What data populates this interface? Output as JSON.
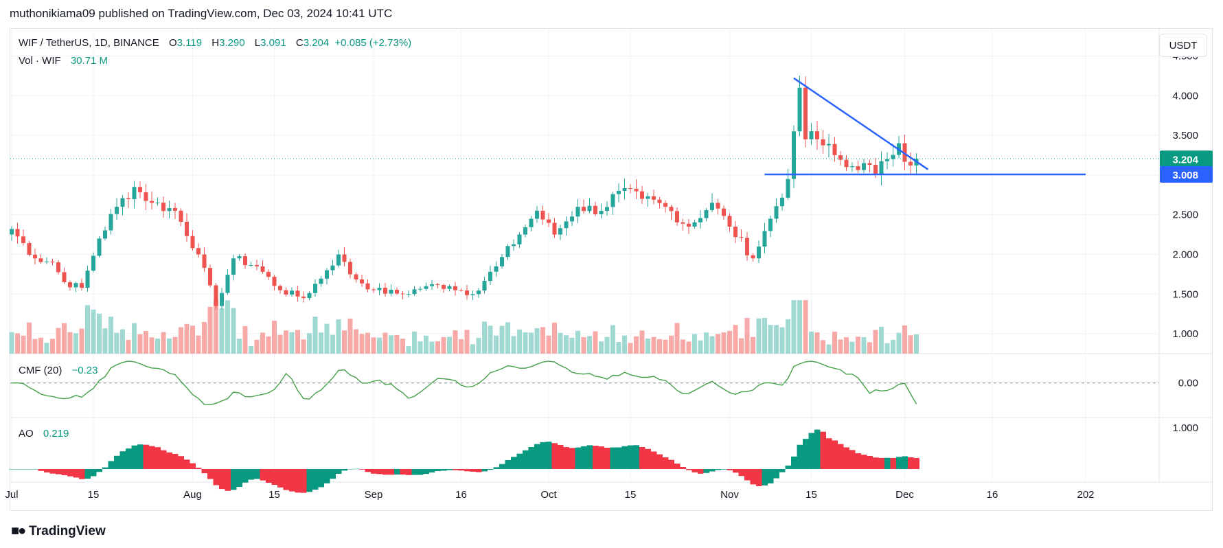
{
  "header": {
    "text": "muthonikiama09 published on TradingView.com, Dec 03, 2024 10:41 UTC"
  },
  "footer": {
    "brand": "TradingView",
    "logo_icon": "tradingview-logo-icon"
  },
  "currency_button": "USDT",
  "legend": {
    "symbol": "WIF / TetherUS, 1D, BINANCE",
    "o_label": "O",
    "o": "3.119",
    "h_label": "H",
    "h": "3.290",
    "l_label": "L",
    "l": "3.091",
    "c_label": "C",
    "c": "3.204",
    "change": "+0.085 (+2.73%)",
    "vol_label": "Vol · WIF",
    "vol": "30.71 M",
    "cmf_label": "CMF (20)",
    "cmf": "−0.23",
    "ao_label": "AO",
    "ao": "0.219"
  },
  "price_badges": {
    "last": "3.204",
    "support": "3.008"
  },
  "colors": {
    "up": "#26a69a",
    "down": "#ef5350",
    "vol_up": "#9fd9d2",
    "vol_down": "#f7a9a7",
    "trendline": "#2962ff",
    "cmf": "#43a047",
    "ao_up": "#089981",
    "ao_down": "#f23645",
    "badge_last": "#089981",
    "badge_support": "#2962ff"
  },
  "chart_data": [
    {
      "type": "candlestick",
      "title": "WIF / TetherUS, 1D, BINANCE",
      "ylim": [
        0.75,
        4.85
      ],
      "y_ticks": [
        "4.500",
        "4.000",
        "3.500",
        "3.000",
        "2.500",
        "2.000",
        "1.500",
        "1.000"
      ],
      "x_ticks": [
        "Jul",
        "15",
        "Aug",
        "15",
        "Sep",
        "16",
        "Oct",
        "15",
        "Nov",
        "15",
        "Dec",
        "16",
        "202"
      ],
      "candles_start": "2024-07-01",
      "candles_end": "2024-12-03",
      "close_anchors": [
        [
          "2024-07-01",
          2.32
        ],
        [
          "2024-07-05",
          1.95
        ],
        [
          "2024-07-08",
          1.9
        ],
        [
          "2024-07-10",
          1.65
        ],
        [
          "2024-07-13",
          1.58
        ],
        [
          "2024-07-16",
          2.2
        ],
        [
          "2024-07-19",
          2.6
        ],
        [
          "2024-07-22",
          2.85
        ],
        [
          "2024-07-25",
          2.65
        ],
        [
          "2024-07-29",
          2.55
        ],
        [
          "2024-08-02",
          2.0
        ],
        [
          "2024-08-05",
          1.35
        ],
        [
          "2024-08-08",
          1.95
        ],
        [
          "2024-08-12",
          1.85
        ],
        [
          "2024-08-16",
          1.55
        ],
        [
          "2024-08-20",
          1.45
        ],
        [
          "2024-08-24",
          1.8
        ],
        [
          "2024-08-26",
          2.0
        ],
        [
          "2024-08-28",
          1.75
        ],
        [
          "2024-09-01",
          1.55
        ],
        [
          "2024-09-06",
          1.5
        ],
        [
          "2024-09-10",
          1.6
        ],
        [
          "2024-09-14",
          1.6
        ],
        [
          "2024-09-18",
          1.5
        ],
        [
          "2024-09-22",
          1.85
        ],
        [
          "2024-09-26",
          2.25
        ],
        [
          "2024-09-29",
          2.55
        ],
        [
          "2024-10-02",
          2.25
        ],
        [
          "2024-10-06",
          2.6
        ],
        [
          "2024-10-10",
          2.55
        ],
        [
          "2024-10-13",
          2.8
        ],
        [
          "2024-10-17",
          2.7
        ],
        [
          "2024-10-21",
          2.6
        ],
        [
          "2024-10-25",
          2.35
        ],
        [
          "2024-10-29",
          2.65
        ],
        [
          "2024-11-01",
          2.35
        ],
        [
          "2024-11-05",
          1.95
        ],
        [
          "2024-11-08",
          2.45
        ],
        [
          "2024-11-11",
          2.95
        ],
        [
          "2024-11-12",
          3.55
        ],
        [
          "2024-11-13",
          4.1
        ],
        [
          "2024-11-14",
          3.45
        ],
        [
          "2024-11-16",
          3.45
        ],
        [
          "2024-11-19",
          3.25
        ],
        [
          "2024-11-21",
          3.1
        ],
        [
          "2024-11-24",
          3.15
        ],
        [
          "2024-11-26",
          3.0
        ],
        [
          "2024-11-28",
          3.2
        ],
        [
          "2024-11-30",
          3.4
        ],
        [
          "2024-12-02",
          3.12
        ],
        [
          "2024-12-03",
          3.204
        ]
      ],
      "trendlines": [
        {
          "name": "descending-resistance",
          "from": [
            "2024-11-12",
            4.22
          ],
          "to": [
            "2024-12-05",
            3.07
          ]
        },
        {
          "name": "horizontal-support",
          "from": [
            "2024-11-07",
            3.008
          ],
          "to": [
            "2025-01-01",
            3.008
          ]
        }
      ],
      "last_price": 3.204,
      "support_level": 3.008
    },
    {
      "type": "bar",
      "title": "Vol · WIF",
      "last": "30.71 M"
    },
    {
      "type": "line",
      "title": "CMF (20)",
      "y_ticks": [
        "0.00"
      ],
      "ylim": [
        -0.38,
        0.3
      ],
      "last": -0.23
    },
    {
      "type": "histogram",
      "title": "AO",
      "y_ticks": [
        "1.000"
      ],
      "ylim": [
        -0.8,
        1.05
      ],
      "last": 0.219
    }
  ]
}
